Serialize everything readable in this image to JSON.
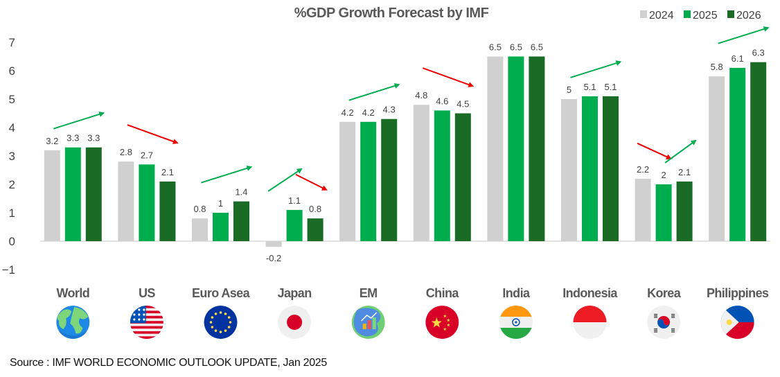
{
  "chart_data": {
    "type": "bar",
    "title": "%GDP Growth Forecast by IMF",
    "xlabel": "",
    "ylabel": "",
    "ylim": [
      -1,
      7
    ],
    "yticks": [
      -1,
      0,
      1,
      2,
      3,
      4,
      5,
      6,
      7
    ],
    "grid": false,
    "legend_position": "top-right",
    "categories": [
      "World",
      "US",
      "Euro Asea",
      "Japan",
      "EM",
      "China",
      "India",
      "Indonesia",
      "Korea",
      "Philippines"
    ],
    "category_icons": [
      "globe-icon",
      "us-flag-icon",
      "eu-flag-icon",
      "japan-flag-icon",
      "emerging-markets-map-icon",
      "china-flag-icon",
      "india-flag-icon",
      "indonesia-flag-icon",
      "korea-flag-icon",
      "philippines-flag-icon"
    ],
    "series": [
      {
        "name": "2024",
        "color": "#d0d0d0",
        "values": [
          3.2,
          2.8,
          0.8,
          -0.2,
          4.2,
          4.8,
          6.5,
          5,
          2.2,
          5.8
        ]
      },
      {
        "name": "2025",
        "color": "#00ad4e",
        "values": [
          3.3,
          2.7,
          1,
          1.1,
          4.2,
          4.6,
          6.5,
          5.1,
          2,
          6.1
        ]
      },
      {
        "name": "2026",
        "color": "#1a6b26",
        "values": [
          3.3,
          2.1,
          1.4,
          0.8,
          4.3,
          4.5,
          6.5,
          5.1,
          2.1,
          6.3
        ]
      }
    ],
    "annotations": [
      {
        "category": "World",
        "type": "arrow",
        "direction": "up",
        "color": "#00ad4e"
      },
      {
        "category": "US",
        "type": "arrow",
        "direction": "down",
        "color": "#ee0000"
      },
      {
        "category": "Euro Asea",
        "type": "arrow",
        "direction": "up",
        "color": "#00ad4e"
      },
      {
        "category": "Japan",
        "type": "arrow",
        "direction": "up",
        "color": "#00ad4e",
        "span": "2024-2025"
      },
      {
        "category": "Japan",
        "type": "arrow",
        "direction": "down",
        "color": "#ee0000",
        "span": "2025-2026"
      },
      {
        "category": "EM",
        "type": "arrow",
        "direction": "up",
        "color": "#00ad4e"
      },
      {
        "category": "China",
        "type": "arrow",
        "direction": "down",
        "color": "#ee0000"
      },
      {
        "category": "Indonesia",
        "type": "arrow",
        "direction": "up",
        "color": "#00ad4e"
      },
      {
        "category": "Korea",
        "type": "arrow",
        "direction": "down",
        "color": "#ee0000",
        "span": "2024-2025"
      },
      {
        "category": "Korea",
        "type": "arrow",
        "direction": "up",
        "color": "#00ad4e",
        "span": "2025-2026"
      },
      {
        "category": "Philippines",
        "type": "arrow",
        "direction": "up",
        "color": "#00ad4e"
      }
    ]
  },
  "source": "Source : IMF WORLD ECONOMIC OUTLOOK UPDATE, Jan 2025"
}
